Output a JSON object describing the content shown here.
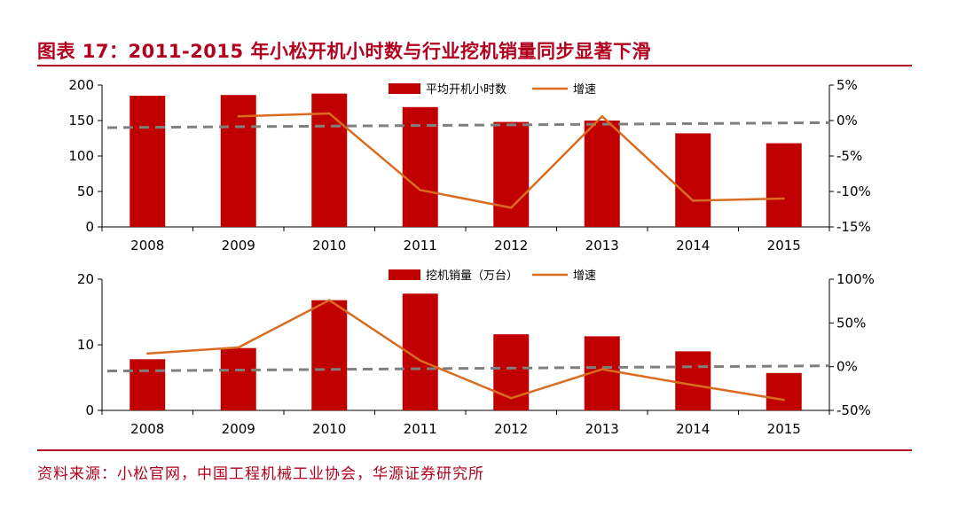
{
  "title": "图表 17：2011-2015 年小松开机小时数与行业挖机销量同步显著下滑",
  "source": "资料来源：小松官网，中国工程机械工业协会，华源证券研究所",
  "colors": {
    "bar": "#c00000",
    "line": "#d96c1f",
    "dashed": "#7f7f7f",
    "title": "#b2001f"
  },
  "chart_data": [
    {
      "type": "bar",
      "categories": [
        "2008",
        "2009",
        "2010",
        "2011",
        "2012",
        "2013",
        "2014",
        "2015"
      ],
      "series": [
        {
          "name": "平均开机小时数",
          "type": "bar",
          "axis": "left",
          "values": [
            185,
            186,
            188,
            169,
            148,
            150,
            132,
            118
          ]
        },
        {
          "name": "增速",
          "type": "line",
          "axis": "right",
          "values": [
            null,
            0.6,
            1.0,
            -9.8,
            -12.3,
            0.6,
            -11.3,
            -11.0
          ]
        }
      ],
      "left_axis": {
        "min": 0,
        "max": 200,
        "ticks": [
          0,
          50,
          100,
          150,
          200
        ],
        "tick_labels": [
          "0",
          "50",
          "100",
          "150",
          "200"
        ]
      },
      "right_axis": {
        "min": -15,
        "max": 5,
        "ticks": [
          -15,
          -10,
          -5,
          0,
          5
        ],
        "tick_labels": [
          "-15%",
          "-10%",
          "-5%",
          "0%",
          "5%"
        ]
      },
      "dashed_line": {
        "axis": "right",
        "start": -1.0,
        "end": -0.3
      },
      "legend": [
        "平均开机小时数",
        "增速"
      ],
      "legend_position": "top-center"
    },
    {
      "type": "bar",
      "categories": [
        "2008",
        "2009",
        "2010",
        "2011",
        "2012",
        "2013",
        "2014",
        "2015"
      ],
      "series": [
        {
          "name": "挖机销量（万台）",
          "type": "bar",
          "axis": "left",
          "values": [
            7.8,
            9.5,
            16.8,
            17.8,
            11.6,
            11.3,
            9.0,
            5.7
          ]
        },
        {
          "name": "增速",
          "type": "line",
          "axis": "right",
          "values": [
            15,
            22,
            76,
            7,
            -36,
            -3,
            -21,
            -38
          ]
        }
      ],
      "left_axis": {
        "min": 0,
        "max": 20,
        "ticks": [
          0,
          10,
          20
        ],
        "tick_labels": [
          "0",
          "10",
          "20"
        ]
      },
      "right_axis": {
        "min": -50,
        "max": 100,
        "ticks": [
          -50,
          0,
          50,
          100
        ],
        "tick_labels": [
          "-50%",
          "0%",
          "50%",
          "100%"
        ]
      },
      "dashed_line": {
        "axis": "right",
        "start": -5,
        "end": 1
      },
      "legend": [
        "挖机销量（万台）",
        "增速"
      ],
      "legend_position": "top-center"
    }
  ]
}
